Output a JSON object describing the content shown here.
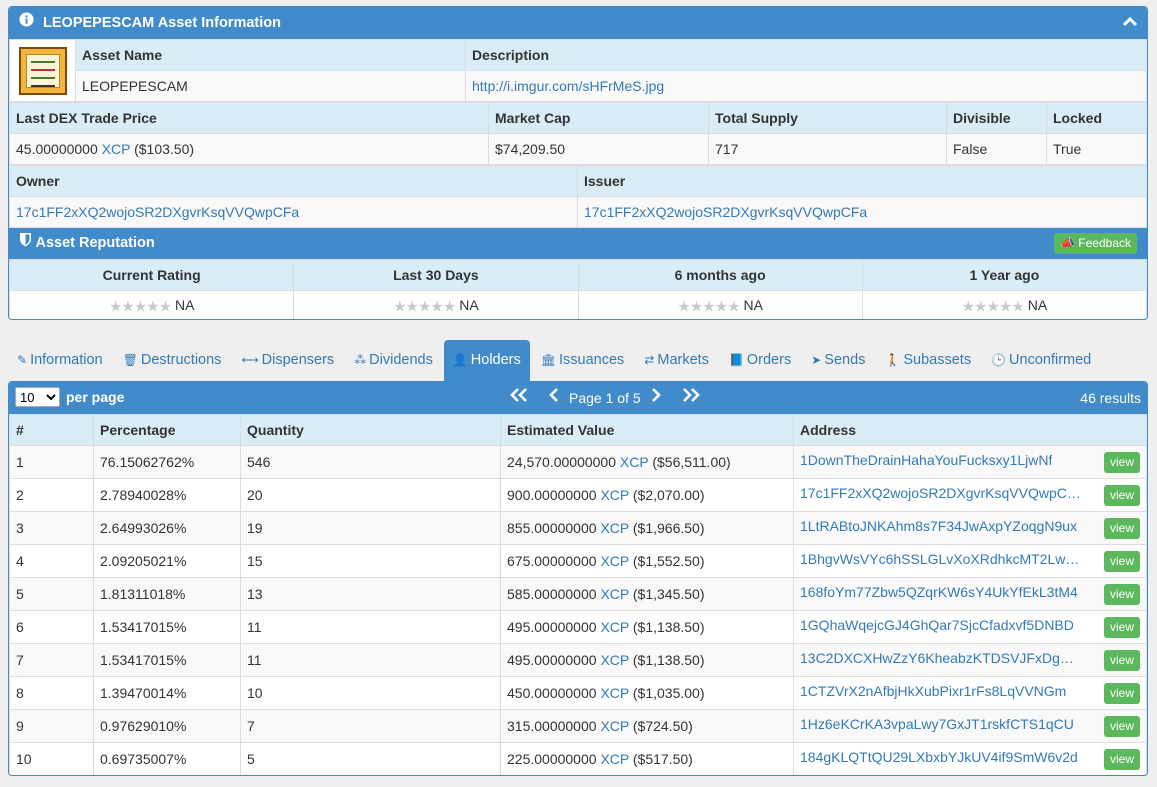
{
  "asset_panel": {
    "title": "LEOPEPESCAM Asset Information",
    "headers": {
      "asset_name": "Asset Name",
      "description": "Description"
    },
    "asset_name": "LEOPEPESCAM",
    "description_link": "http://i.imgur.com/sHFrMeS.jpg",
    "price_headers": {
      "last_trade": "Last DEX Trade Price",
      "market_cap": "Market Cap",
      "total_supply": "Total Supply",
      "divisible": "Divisible",
      "locked": "Locked"
    },
    "last_trade_amount": "45.00000000",
    "last_trade_unit": "XCP",
    "last_trade_usd": "($103.50)",
    "market_cap": "$74,209.50",
    "total_supply": "717",
    "divisible": "False",
    "locked": "True",
    "owner_header": "Owner",
    "issuer_header": "Issuer",
    "owner": "17c1FF2xXQ2wojoSR2DXgvrKsqVVQwpCFa",
    "issuer": "17c1FF2xXQ2wojoSR2DXgvrKsqVVQwpCFa"
  },
  "reputation": {
    "title": "Asset Reputation",
    "feedback_label": "Feedback",
    "columns": [
      "Current Rating",
      "Last 30 Days",
      "6 months ago",
      "1 Year ago"
    ],
    "values": [
      "NA",
      "NA",
      "NA",
      "NA"
    ]
  },
  "tabs": [
    {
      "label": "Information",
      "icon": "info-icon"
    },
    {
      "label": "Destructions",
      "icon": "trash-icon"
    },
    {
      "label": "Dispensers",
      "icon": "arrows-h-icon"
    },
    {
      "label": "Dividends",
      "icon": "sitemap-icon"
    },
    {
      "label": "Holders",
      "icon": "user-icon",
      "active": true
    },
    {
      "label": "Issuances",
      "icon": "bank-icon"
    },
    {
      "label": "Markets",
      "icon": "exchange-icon"
    },
    {
      "label": "Orders",
      "icon": "book-icon"
    },
    {
      "label": "Sends",
      "icon": "send-icon"
    },
    {
      "label": "Subassets",
      "icon": "child-icon"
    },
    {
      "label": "Unconfirmed",
      "icon": "clock-icon"
    }
  ],
  "holders": {
    "per_page_value": "10",
    "per_page_label": "per page",
    "page_text": "Page 1 of 5",
    "results": "46 results",
    "columns": [
      "#",
      "Percentage",
      "Quantity",
      "Estimated Value",
      "Address"
    ],
    "view_label": "view",
    "rows": [
      {
        "n": "1",
        "pct": "76.15062762%",
        "qty": "546",
        "amt": "24,570.00000000",
        "usd": "($56,511.00)",
        "addr": "1DownTheDrainHahaYouFucksxy1LjwNf"
      },
      {
        "n": "2",
        "pct": "2.78940028%",
        "qty": "20",
        "amt": "900.00000000",
        "usd": "($2,070.00)",
        "addr": "17c1FF2xXQ2wojoSR2DXgvrKsqVVQwpC…"
      },
      {
        "n": "3",
        "pct": "2.64993026%",
        "qty": "19",
        "amt": "855.00000000",
        "usd": "($1,966.50)",
        "addr": "1LtRABtoJNKAhm8s7F34JwAxpYZoqgN9ux"
      },
      {
        "n": "4",
        "pct": "2.09205021%",
        "qty": "15",
        "amt": "675.00000000",
        "usd": "($1,552.50)",
        "addr": "1BhgvWsVYc6hSSLGLvXoXRdhkcMT2Lw…"
      },
      {
        "n": "5",
        "pct": "1.81311018%",
        "qty": "13",
        "amt": "585.00000000",
        "usd": "($1,345.50)",
        "addr": "168foYm77Zbw5QZqrKW6sY4UkYfEkL3tM4"
      },
      {
        "n": "6",
        "pct": "1.53417015%",
        "qty": "11",
        "amt": "495.00000000",
        "usd": "($1,138.50)",
        "addr": "1GQhaWqejcGJ4GhQar7SjcCfadxvf5DNBD"
      },
      {
        "n": "7",
        "pct": "1.53417015%",
        "qty": "11",
        "amt": "495.00000000",
        "usd": "($1,138.50)",
        "addr": "13C2DXCXHwZzY6KheabzKTDSVJFxDg…"
      },
      {
        "n": "8",
        "pct": "1.39470014%",
        "qty": "10",
        "amt": "450.00000000",
        "usd": "($1,035.00)",
        "addr": "1CTZVrX2nAfbjHkXubPixr1rFs8LqVVNGm"
      },
      {
        "n": "9",
        "pct": "0.97629010%",
        "qty": "7",
        "amt": "315.00000000",
        "usd": "($724.50)",
        "addr": "1Hz6eKCrKA3vpaLwy7GxJT1rskfCTS1qCU"
      },
      {
        "n": "10",
        "pct": "0.69735007%",
        "qty": "5",
        "amt": "225.00000000",
        "usd": "($517.50)",
        "addr": "184gKLQTtQU29LXbxbYJkUV4if9SmW6v2d"
      }
    ],
    "unit": "XCP"
  },
  "colors": {
    "primary": "#428bca",
    "header_bg": "#d9edf7",
    "success": "#5cb85c",
    "link": "#337ab7"
  }
}
